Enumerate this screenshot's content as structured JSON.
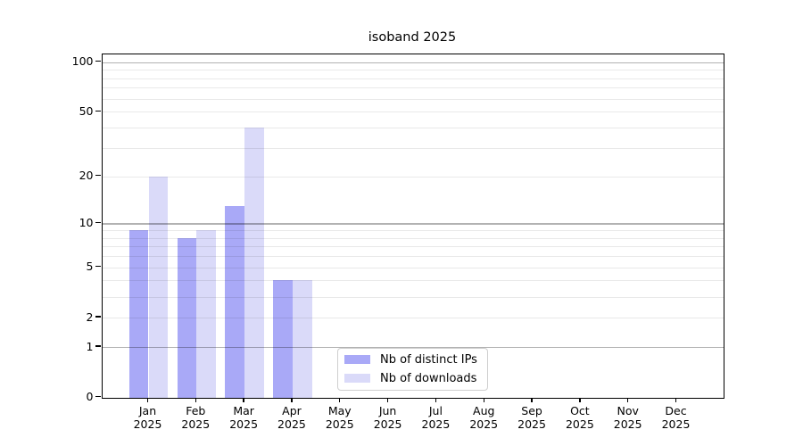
{
  "title": "isoband 2025",
  "chart_data": {
    "type": "bar",
    "title": "isoband 2025",
    "scale": "log1p",
    "x_months": [
      "Jan",
      "Feb",
      "Mar",
      "Apr",
      "May",
      "Jun",
      "Jul",
      "Aug",
      "Sep",
      "Oct",
      "Nov",
      "Dec"
    ],
    "x_year": "2025",
    "series": [
      {
        "name": "Nb of distinct IPs",
        "color": "#a9a9f7",
        "values": [
          9,
          8,
          13,
          4,
          0,
          0,
          0,
          0,
          0,
          0,
          0,
          0
        ]
      },
      {
        "name": "Nb of downloads",
        "color": "#dadaf9",
        "values": [
          20,
          9,
          40,
          4,
          0,
          0,
          0,
          0,
          0,
          0,
          0,
          0
        ]
      }
    ],
    "y_ticks": [
      0,
      1,
      2,
      5,
      10,
      20,
      50,
      100
    ],
    "y_major_gridlines": [
      1,
      10,
      100
    ],
    "y_minor_gridlines": [
      2,
      3,
      4,
      5,
      6,
      7,
      8,
      9,
      20,
      30,
      40,
      50,
      60,
      70,
      80,
      90
    ],
    "ylim": [
      0,
      112
    ],
    "grid": "on",
    "legend_position": "bottom-center"
  },
  "colors": {
    "background": "#ffffff",
    "axis": "#000000",
    "major_grid": "rgba(0,0,0,0.30)",
    "minor_grid": "rgba(0,0,0,0.085)",
    "legend_border": "#cfcfcf",
    "ips_bar": "#a9a9f7",
    "downloads_bar": "#dadaf9"
  }
}
